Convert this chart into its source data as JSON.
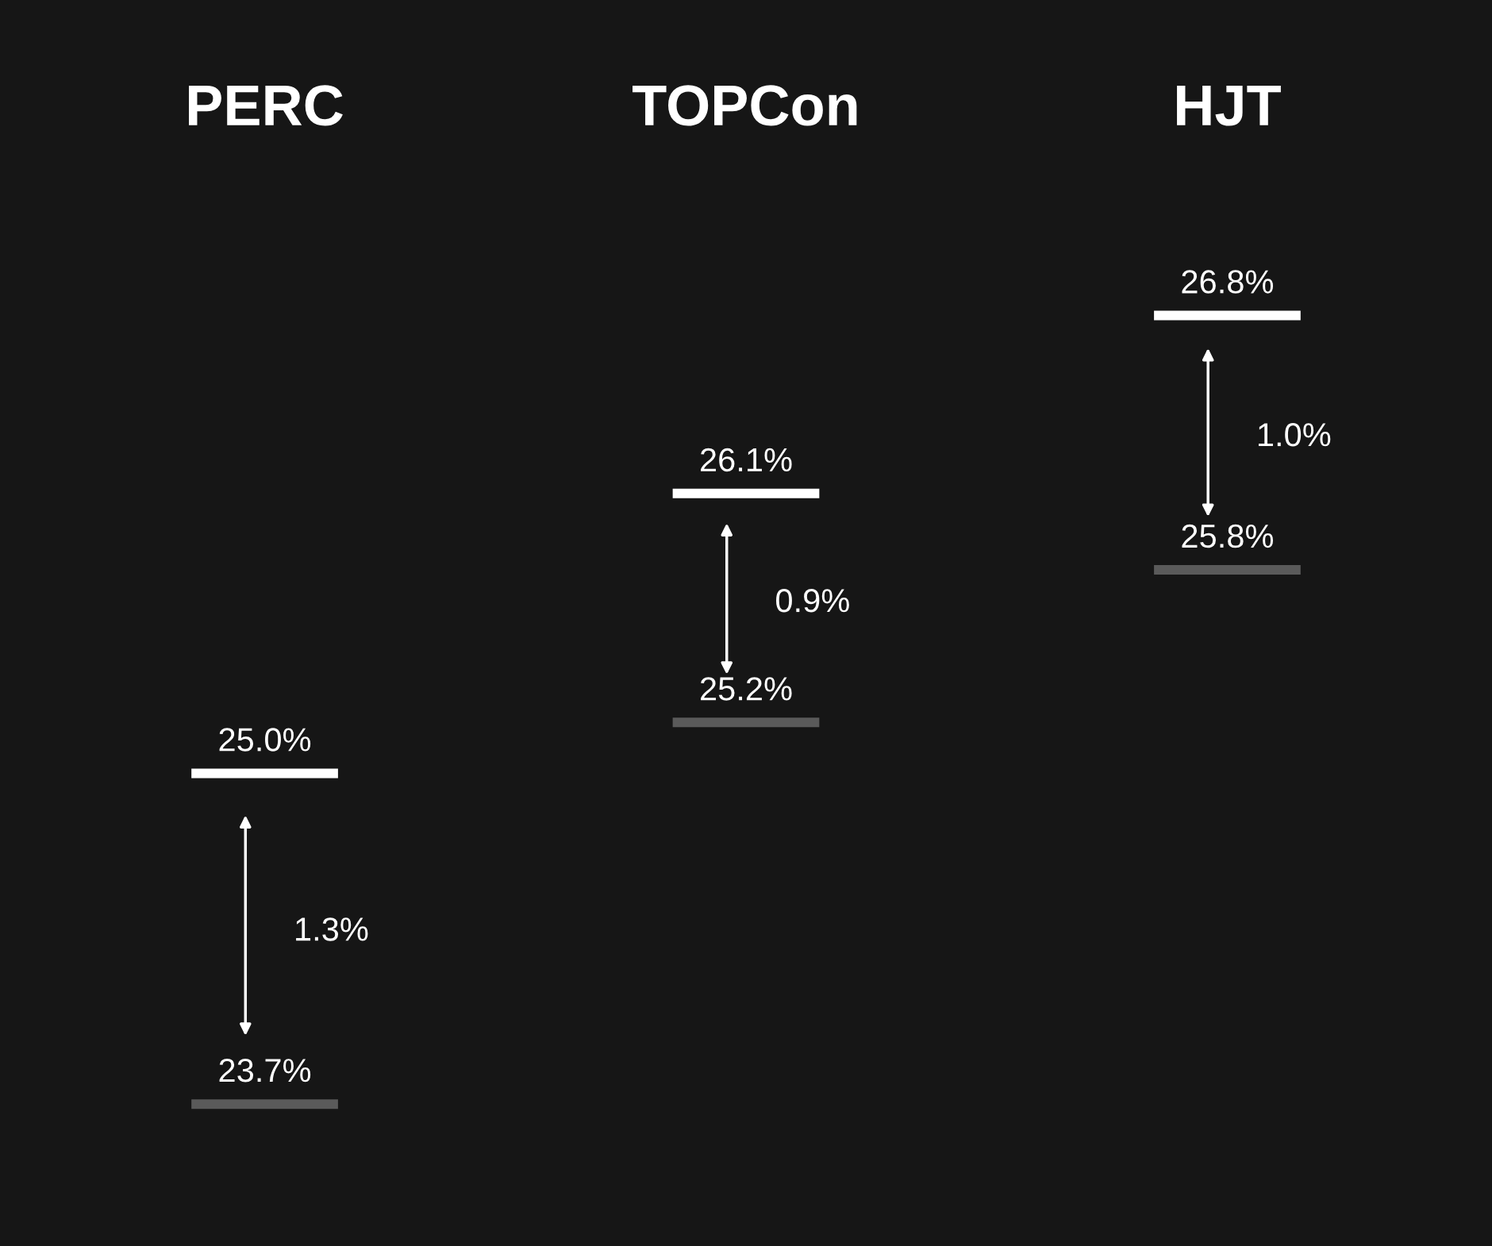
{
  "chart_data": {
    "type": "other",
    "categories": [
      "PERC",
      "TOPCon",
      "HJT"
    ],
    "series": [
      {
        "color": "#ffffff",
        "values": [
          25.0,
          26.1,
          26.8
        ],
        "value_labels": [
          "25.0%",
          "26.1%",
          "26.8%"
        ]
      },
      {
        "color": "#5a5a5a",
        "values": [
          23.7,
          25.2,
          25.8
        ],
        "value_labels": [
          "23.7%",
          "25.2%",
          "25.8%"
        ]
      }
    ],
    "annotations": [
      "1.3%",
      "0.9%",
      "1.0%"
    ],
    "legend": false
  }
}
